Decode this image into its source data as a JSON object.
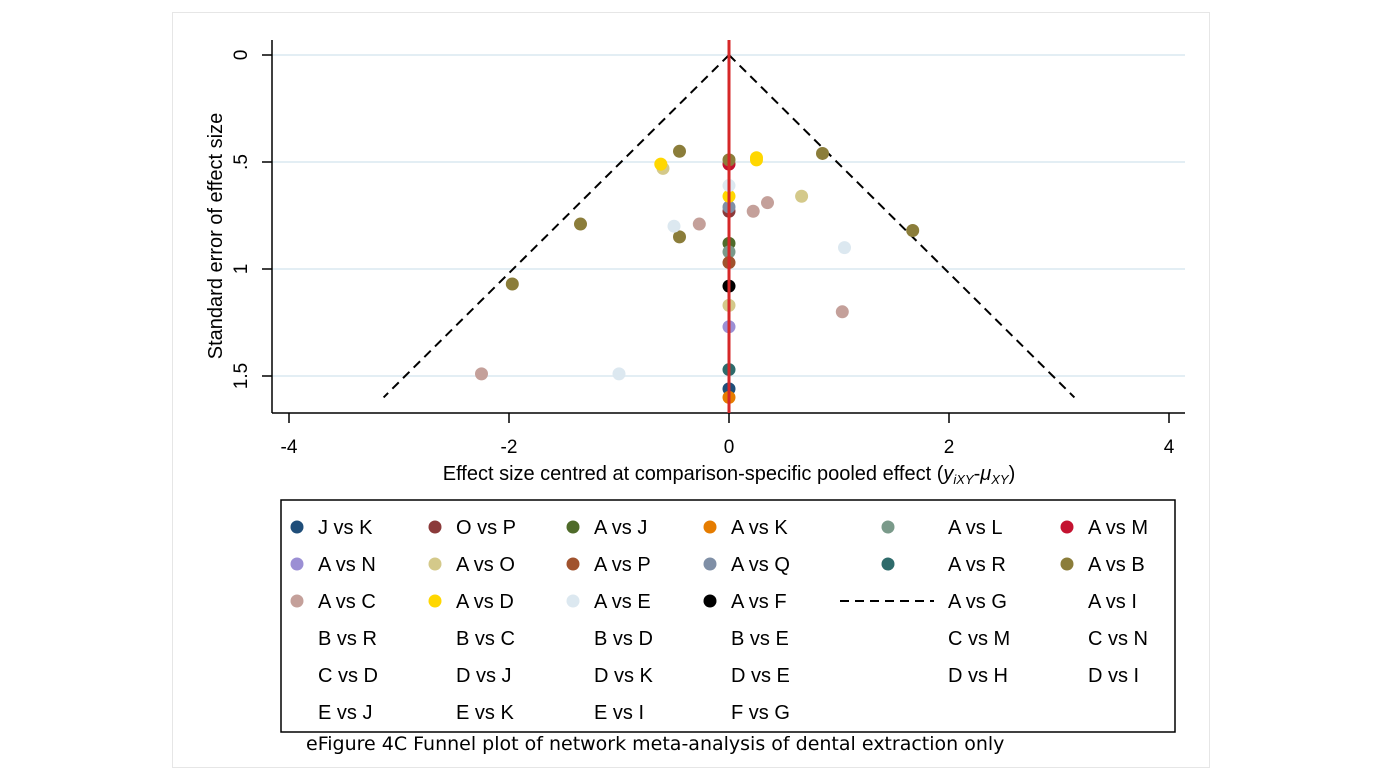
{
  "caption": "eFigure 4C Funnel plot of network meta-analysis of dental extraction only",
  "chart_data": {
    "type": "scatter",
    "xlabel": "Effect size centred at comparison-specific pooled effect (",
    "xlabel_math": "y",
    "xlabel_sub1": "iXY",
    "xlabel_dash": "-",
    "xlabel_mu": "μ",
    "xlabel_sub2": "XY",
    "xlabel_close": ")",
    "ylabel": "Standard error of effect size",
    "xlim": [
      -4,
      4
    ],
    "ylim": [
      0,
      1.6
    ],
    "y_reversed": true,
    "grid": true,
    "x_ticks": [
      "-4",
      "-2",
      "0",
      "2",
      "4"
    ],
    "x_tick_values": [
      -4,
      -2,
      0,
      2,
      4
    ],
    "y_ticks": [
      "0",
      ".5",
      "1",
      "1.5"
    ],
    "y_tick_values": [
      0,
      0.5,
      1,
      1.5
    ],
    "reference_line": {
      "x": 0,
      "color": "#d62728"
    },
    "funnel": {
      "left": [
        [
          0,
          0
        ],
        [
          -3.14,
          1.6
        ]
      ],
      "right": [
        [
          0,
          0
        ],
        [
          3.14,
          1.6
        ]
      ],
      "style": "dashed"
    },
    "legend_position": "bottom",
    "series": [
      {
        "name": "J vs K",
        "color": "#1f4e79",
        "points": [
          [
            0,
            1.56
          ]
        ]
      },
      {
        "name": "O vs P",
        "color": "#8b3a3a",
        "points": [
          [
            0,
            0.73
          ]
        ]
      },
      {
        "name": "A vs J",
        "color": "#4f6b2a",
        "points": [
          [
            0,
            0.88
          ]
        ]
      },
      {
        "name": "A vs K",
        "color": "#e57c00",
        "points": [
          [
            0,
            1.6
          ]
        ]
      },
      {
        "name": "A vs L",
        "color": "#7a9a8a",
        "points": [
          [
            0,
            0.92
          ]
        ]
      },
      {
        "name": "A vs M",
        "color": "#c41230",
        "points": [
          [
            0,
            0.51
          ]
        ]
      },
      {
        "name": "A vs N",
        "color": "#9b8fd4",
        "points": [
          [
            0,
            1.27
          ]
        ]
      },
      {
        "name": "A vs O",
        "color": "#d4c98a",
        "points": [
          [
            -0.6,
            0.53
          ],
          [
            0.66,
            0.66
          ],
          [
            0,
            1.17
          ]
        ]
      },
      {
        "name": "A vs P",
        "color": "#a0522d",
        "points": [
          [
            0,
            0.97
          ]
        ]
      },
      {
        "name": "A vs Q",
        "color": "#7f8fa6",
        "points": [
          [
            0,
            0.71
          ]
        ]
      },
      {
        "name": "A vs R",
        "color": "#2e6b6b",
        "points": [
          [
            0,
            1.47
          ]
        ]
      },
      {
        "name": "A vs B",
        "color": "#8b7d3a",
        "points": [
          [
            -0.45,
            0.45
          ],
          [
            0.85,
            0.46
          ],
          [
            0,
            0.49
          ],
          [
            -1.35,
            0.79
          ],
          [
            -0.45,
            0.85
          ],
          [
            1.67,
            0.82
          ],
          [
            -1.97,
            1.07
          ]
        ]
      },
      {
        "name": "A vs C",
        "color": "#c4a09a",
        "points": [
          [
            0.35,
            0.69
          ],
          [
            0.22,
            0.73
          ],
          [
            -0.27,
            0.79
          ],
          [
            1.03,
            1.2
          ],
          [
            -2.25,
            1.49
          ]
        ]
      },
      {
        "name": "A vs D",
        "color": "#ffd700",
        "points": [
          [
            -0.62,
            0.51
          ],
          [
            0.25,
            0.48
          ],
          [
            0.25,
            0.49
          ],
          [
            0,
            0.66
          ]
        ]
      },
      {
        "name": "A vs E",
        "color": "#dce8f0",
        "points": [
          [
            -0.5,
            0.8
          ],
          [
            1.05,
            0.9
          ],
          [
            -1.0,
            1.49
          ],
          [
            0,
            0.61
          ]
        ]
      },
      {
        "name": "A vs F",
        "color": "#000000",
        "points": [
          [
            0,
            1.08
          ]
        ]
      }
    ],
    "legend": [
      {
        "label": "J vs K",
        "marker": "dot",
        "color": "#1f4e79"
      },
      {
        "label": "O vs P",
        "marker": "dot",
        "color": "#8b3a3a"
      },
      {
        "label": "A vs J",
        "marker": "dot",
        "color": "#4f6b2a"
      },
      {
        "label": "A vs K",
        "marker": "dot",
        "color": "#e57c00"
      },
      {
        "label": "A vs L",
        "marker": "dot",
        "color": "#7a9a8a"
      },
      {
        "label": "A vs M",
        "marker": "dot",
        "color": "#c41230"
      },
      {
        "label": "A vs N",
        "marker": "dot",
        "color": "#9b8fd4"
      },
      {
        "label": "A vs O",
        "marker": "dot",
        "color": "#d4c98a"
      },
      {
        "label": "A vs P",
        "marker": "dot",
        "color": "#a0522d"
      },
      {
        "label": "A vs Q",
        "marker": "dot",
        "color": "#7f8fa6"
      },
      {
        "label": "A vs R",
        "marker": "dot",
        "color": "#2e6b6b"
      },
      {
        "label": "A vs B",
        "marker": "dot",
        "color": "#8b7d3a"
      },
      {
        "label": "A vs C",
        "marker": "dot",
        "color": "#c4a09a"
      },
      {
        "label": "A vs D",
        "marker": "dot",
        "color": "#ffd700"
      },
      {
        "label": "A vs E",
        "marker": "dot",
        "color": "#dce8f0"
      },
      {
        "label": "A vs F",
        "marker": "dot",
        "color": "#000000"
      },
      {
        "label": "A vs G",
        "marker": "dash",
        "color": "#000000"
      },
      {
        "label": "A vs I",
        "marker": "none",
        "color": ""
      },
      {
        "label": "B vs R",
        "marker": "none",
        "color": ""
      },
      {
        "label": "B vs C",
        "marker": "none",
        "color": ""
      },
      {
        "label": "B vs D",
        "marker": "none",
        "color": ""
      },
      {
        "label": "B vs E",
        "marker": "none",
        "color": ""
      },
      {
        "label": "C vs M",
        "marker": "none",
        "color": ""
      },
      {
        "label": "C vs N",
        "marker": "none",
        "color": ""
      },
      {
        "label": "C vs D",
        "marker": "none",
        "color": ""
      },
      {
        "label": "D vs J",
        "marker": "none",
        "color": ""
      },
      {
        "label": "D vs K",
        "marker": "none",
        "color": ""
      },
      {
        "label": "D vs E",
        "marker": "none",
        "color": ""
      },
      {
        "label": "D vs H",
        "marker": "none",
        "color": ""
      },
      {
        "label": "D vs I",
        "marker": "none",
        "color": ""
      },
      {
        "label": "E vs J",
        "marker": "none",
        "color": ""
      },
      {
        "label": "E vs K",
        "marker": "none",
        "color": ""
      },
      {
        "label": "E vs I",
        "marker": "none",
        "color": ""
      },
      {
        "label": "F vs G",
        "marker": "none",
        "color": ""
      }
    ]
  }
}
